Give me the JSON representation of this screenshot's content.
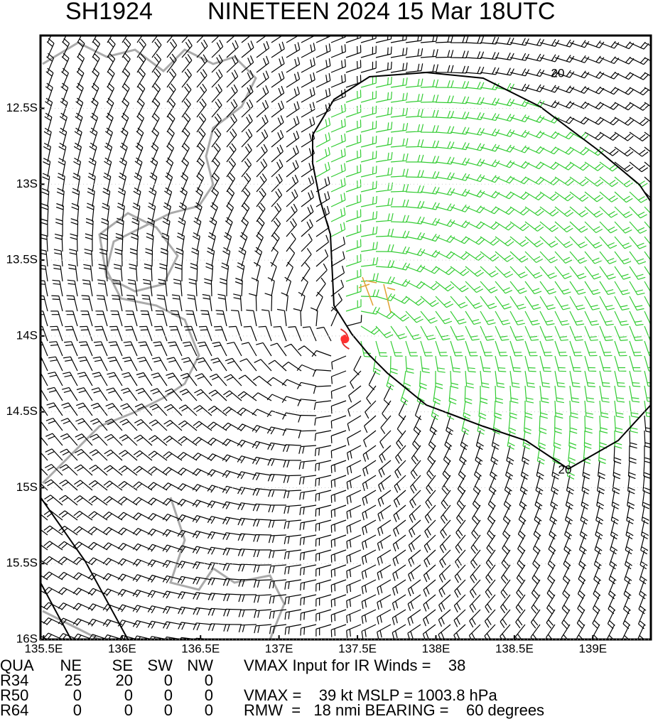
{
  "map": {
    "title_id": "SH1924",
    "title": "NINETEEN 2024 15 Mar 18UTC",
    "lon_range": [
      135.48,
      139.37
    ],
    "lat_range": [
      -12.02,
      -16.0
    ],
    "lon_ticks": [
      {
        "value": 135.5,
        "label": "135.5E"
      },
      {
        "value": 136,
        "label": "136E"
      },
      {
        "value": 136.5,
        "label": "136.5E"
      },
      {
        "value": 137,
        "label": "137E"
      },
      {
        "value": 137.5,
        "label": "137.5E"
      },
      {
        "value": 138,
        "label": "138E"
      },
      {
        "value": 138.5,
        "label": "138.5E"
      },
      {
        "value": 139,
        "label": "139E"
      }
    ],
    "lat_ticks": [
      {
        "value": -12.5,
        "label": "12.5S"
      },
      {
        "value": -13,
        "label": "13S"
      },
      {
        "value": -13.5,
        "label": "13.5S"
      },
      {
        "value": -14,
        "label": "14S"
      },
      {
        "value": -14.5,
        "label": "14.5S"
      },
      {
        "value": -15,
        "label": "15S"
      },
      {
        "value": -15.5,
        "label": "15.5S"
      },
      {
        "value": -16,
        "label": "16S"
      }
    ],
    "center": [
      137.42,
      -14.02
    ],
    "contour_label": "20"
  },
  "table": {
    "header": [
      "QUA",
      "NE",
      "SE",
      "SW",
      "NW"
    ],
    "rows": [
      [
        "R34",
        "25",
        "20",
        "0",
        "0"
      ],
      [
        "R50",
        "0",
        "0",
        "0",
        "0"
      ],
      [
        "R64",
        "0",
        "0",
        "0",
        "0"
      ]
    ],
    "info": [
      "VMAX Input for IR Winds =    38",
      "VMAX =    39 kt MSLP = 1003.8 hPa",
      "RMW  =   18 nmi BEARING =    60 degrees"
    ]
  }
}
